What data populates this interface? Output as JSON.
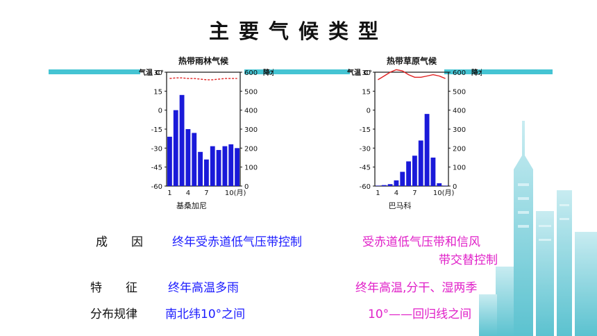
{
  "slide": {
    "title": "主要气候类型"
  },
  "rows": [
    {
      "label": "成　　因",
      "left": "终年受赤道低气压带控制",
      "right_line1": "受赤道低气压带和信风",
      "right_line2": "带交替控制"
    },
    {
      "label": "特　　征",
      "left": "终年高温多雨",
      "right_line1": "终年高温,分干、湿两季",
      "right_line2": ""
    },
    {
      "label": "分布规律",
      "left": "南北纬10°之间",
      "right_line1": "10°——回归线之间",
      "right_line2": ""
    }
  ],
  "chart_data": [
    {
      "type": "bar",
      "title": "热带雨林气候",
      "station": "基桑加尼",
      "ylabel_left": "气温 C°",
      "ylabel_right": "降水量 mm",
      "left_ticks": [
        "30",
        "15",
        "0",
        "-15",
        "-30",
        "-45",
        "-60"
      ],
      "right_ticks": [
        "600",
        "500",
        "400",
        "300",
        "200",
        "100",
        "0"
      ],
      "x_ticks": [
        "1",
        "4",
        "7",
        "10(月)"
      ],
      "categories": [
        "1",
        "2",
        "3",
        "4",
        "5",
        "6",
        "7",
        "8",
        "9",
        "10",
        "11",
        "12"
      ],
      "precip": [
        260,
        400,
        480,
        300,
        280,
        180,
        140,
        210,
        190,
        210,
        220,
        200
      ],
      "temp": [
        25,
        25.5,
        25.5,
        25,
        25,
        24.5,
        24,
        24,
        24.5,
        25,
        25,
        25
      ],
      "ylim_precip": [
        0,
        600
      ],
      "ylim_temp": [
        -60,
        30
      ]
    },
    {
      "type": "bar",
      "title": "热带草原气候",
      "station": "巴马科",
      "ylabel_left": "气温 C°",
      "ylabel_right": "降水量 mm",
      "left_ticks": [
        "30",
        "15",
        "0",
        "-15",
        "-30",
        "-45",
        "-60"
      ],
      "right_ticks": [
        "600",
        "500",
        "400",
        "300",
        "200",
        "100",
        "0"
      ],
      "x_ticks": [
        "1",
        "4",
        "7",
        "10(月)"
      ],
      "categories": [
        "1",
        "2",
        "3",
        "4",
        "5",
        "6",
        "7",
        "8",
        "9",
        "10",
        "11",
        "12"
      ],
      "precip": [
        2,
        5,
        10,
        30,
        75,
        130,
        160,
        240,
        380,
        150,
        15,
        2
      ],
      "temp": [
        24,
        27,
        30,
        32,
        31,
        28,
        26,
        26,
        27,
        28,
        27,
        25
      ],
      "ylim_precip": [
        0,
        600
      ],
      "ylim_temp": [
        -60,
        30
      ]
    }
  ]
}
